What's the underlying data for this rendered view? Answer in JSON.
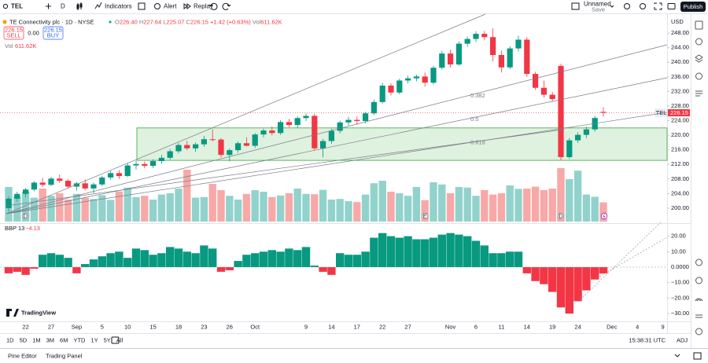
{
  "toolbar": {
    "symbol": "TEL",
    "interval": "D",
    "indicators": "Indicators",
    "alert": "Alert",
    "replay": "Replay",
    "layout_name": "Unnamed",
    "layout_status": "Save",
    "publish": "Publish"
  },
  "legend": {
    "title": "TE Connectivity plc · 1D · NYSE",
    "ohlc": [
      {
        "label": "O",
        "value": "226.40"
      },
      {
        "label": "H",
        "value": "227.64"
      },
      {
        "label": "L",
        "value": "225.07"
      },
      {
        "label": "C",
        "value": "226.15"
      }
    ],
    "change": "+1.42 (+0.63%)",
    "volume_label": "Vol",
    "volume_value": "611.62K"
  },
  "trade": {
    "sell_price": "226.15",
    "sell": "SELL",
    "spread": "0.00",
    "buy_price": "226.15",
    "buy": "BUY"
  },
  "volume_legend": {
    "label": "Vol",
    "value": "611.62K"
  },
  "price_pane": {
    "currency": "USD",
    "ylim": [
      196.1,
      253.2
    ],
    "yticks": [
      {
        "value": 248,
        "label": "248.00"
      },
      {
        "value": 244,
        "label": "244.00"
      },
      {
        "value": 240,
        "label": "240.00"
      },
      {
        "value": 236,
        "label": "236.00"
      },
      {
        "value": 232,
        "label": "232.00"
      },
      {
        "value": 228,
        "label": "228.00"
      },
      {
        "value": 224,
        "label": "224.00"
      },
      {
        "value": 220,
        "label": "220.00"
      },
      {
        "value": 216,
        "label": "216.00"
      },
      {
        "value": 212,
        "label": "212.00"
      },
      {
        "value": 208,
        "label": "208.00"
      },
      {
        "value": 204,
        "label": "204.00"
      },
      {
        "value": 200,
        "label": "200.00"
      }
    ],
    "candles": [
      [
        200.0,
        203.2,
        199.1,
        202.6
      ],
      [
        202.6,
        204.5,
        201.8,
        203.9
      ],
      [
        203.9,
        205.6,
        203.0,
        205.1
      ],
      [
        205.1,
        207.4,
        204.6,
        207.0
      ],
      [
        207.0,
        208.3,
        205.8,
        206.4
      ],
      [
        206.4,
        208.6,
        206.0,
        208.1
      ],
      [
        208.1,
        209.2,
        206.9,
        207.5
      ],
      [
        207.5,
        208.0,
        205.3,
        205.9
      ],
      [
        205.9,
        207.2,
        204.8,
        206.8
      ],
      [
        206.8,
        207.9,
        204.9,
        205.4
      ],
      [
        205.4,
        207.0,
        204.1,
        206.5
      ],
      [
        206.5,
        208.9,
        206.0,
        208.4
      ],
      [
        208.4,
        210.2,
        207.8,
        209.6
      ],
      [
        209.6,
        210.4,
        208.0,
        208.8
      ],
      [
        208.8,
        212.3,
        208.5,
        211.7
      ],
      [
        211.7,
        213.0,
        210.6,
        212.1
      ],
      [
        212.1,
        212.8,
        210.9,
        211.6
      ],
      [
        211.6,
        213.4,
        211.0,
        212.9
      ],
      [
        212.9,
        214.6,
        212.1,
        213.8
      ],
      [
        213.8,
        216.2,
        213.3,
        215.6
      ],
      [
        215.6,
        217.9,
        215.0,
        217.3
      ],
      [
        217.3,
        218.4,
        215.9,
        216.4
      ],
      [
        216.4,
        218.0,
        215.5,
        217.5
      ],
      [
        217.5,
        219.8,
        216.8,
        218.9
      ],
      [
        218.9,
        221.6,
        218.3,
        218.8
      ],
      [
        218.8,
        219.2,
        213.9,
        214.6
      ],
      [
        214.6,
        216.4,
        212.8,
        215.9
      ],
      [
        215.9,
        218.3,
        215.2,
        217.8
      ],
      [
        217.8,
        219.4,
        216.9,
        217.1
      ],
      [
        217.1,
        220.6,
        216.5,
        220.2
      ],
      [
        220.2,
        221.8,
        219.4,
        221.3
      ],
      [
        221.3,
        222.4,
        220.0,
        220.6
      ],
      [
        220.6,
        224.1,
        220.1,
        223.6
      ],
      [
        223.6,
        224.5,
        222.2,
        222.8
      ],
      [
        222.8,
        225.2,
        222.0,
        224.7
      ],
      [
        224.7,
        226.0,
        223.9,
        225.3
      ],
      [
        225.3,
        225.9,
        215.8,
        216.4
      ],
      [
        216.4,
        219.0,
        213.9,
        218.4
      ],
      [
        218.4,
        221.8,
        217.6,
        221.2
      ],
      [
        221.2,
        224.0,
        220.5,
        223.5
      ],
      [
        223.5,
        225.0,
        222.6,
        224.2
      ],
      [
        224.2,
        225.1,
        222.8,
        223.9
      ],
      [
        223.9,
        226.4,
        223.3,
        226.0
      ],
      [
        226.0,
        229.8,
        225.5,
        229.1
      ],
      [
        229.1,
        234.3,
        228.7,
        233.6
      ],
      [
        233.6,
        234.2,
        230.9,
        231.7
      ],
      [
        231.7,
        235.5,
        231.2,
        235.0
      ],
      [
        235.0,
        236.3,
        234.2,
        235.6
      ],
      [
        235.6,
        236.6,
        234.8,
        236.1
      ],
      [
        236.1,
        237.2,
        233.3,
        234.4
      ],
      [
        234.4,
        239.0,
        233.9,
        238.5
      ],
      [
        238.5,
        243.1,
        238.0,
        242.4
      ],
      [
        242.4,
        243.5,
        238.6,
        239.4
      ],
      [
        239.4,
        245.7,
        239.0,
        245.1
      ],
      [
        245.1,
        247.0,
        244.2,
        246.4
      ],
      [
        246.4,
        248.5,
        245.6,
        247.8
      ],
      [
        247.8,
        248.6,
        246.0,
        246.9
      ],
      [
        246.9,
        249.3,
        240.3,
        242.0
      ],
      [
        242.0,
        243.2,
        237.2,
        238.6
      ],
      [
        238.6,
        244.4,
        238.1,
        243.8
      ],
      [
        243.8,
        247.3,
        243.0,
        246.2
      ],
      [
        246.2,
        246.9,
        236.0,
        236.8
      ],
      [
        236.8,
        237.4,
        232.4,
        233.0
      ],
      [
        233.0,
        235.0,
        230.3,
        231.1
      ],
      [
        231.1,
        231.9,
        229.2,
        229.9
      ],
      [
        239.0,
        239.6,
        213.2,
        214.0
      ],
      [
        214.0,
        219.2,
        213.5,
        218.6
      ],
      [
        218.6,
        220.8,
        217.9,
        220.1
      ],
      [
        220.1,
        222.3,
        219.2,
        221.6
      ],
      [
        221.6,
        225.3,
        221.0,
        224.73
      ],
      [
        226.4,
        227.64,
        225.07,
        226.15
      ]
    ],
    "volumes": [
      1100000,
      800000,
      950000,
      760000,
      1050000,
      820000,
      900000,
      700000,
      880000,
      760000,
      720000,
      840000,
      690000,
      960000,
      1080000,
      780000,
      820000,
      700000,
      860000,
      900000,
      1050000,
      1650000,
      760000,
      780000,
      1200000,
      1000000,
      820000,
      700000,
      880000,
      1000000,
      950000,
      780000,
      830000,
      900000,
      1050000,
      880000,
      870000,
      1010000,
      700000,
      720000,
      650000,
      620000,
      860000,
      1220000,
      1300000,
      950000,
      900000,
      820000,
      1100000,
      680000,
      1250000,
      1180000,
      900000,
      1100000,
      1080000,
      820000,
      1000000,
      860000,
      900000,
      1150000,
      1040000,
      1050000,
      1110000,
      1000000,
      1050000,
      1700000,
      1350000,
      1620000,
      860000,
      790000,
      611620
    ],
    "last_price": {
      "symbol": "TEL",
      "value": 226.15
    },
    "zone": {
      "top": 222.0,
      "bottom": 213.1
    },
    "fib_levels": [
      {
        "label": "0.382",
        "value": 230.8
      },
      {
        "label": "0.5",
        "value": 224.3
      },
      {
        "label": "0.618",
        "value": 218.0
      }
    ],
    "events": [
      {
        "label": "D",
        "index": 2
      },
      {
        "label": "E",
        "index": 49
      },
      {
        "label": "D",
        "index": 65
      }
    ]
  },
  "bbp_pane": {
    "title": "BBP 13",
    "value": "−4.13",
    "ylim": [
      -34.5,
      27.9
    ],
    "yticks": [
      {
        "value": 20,
        "label": "20.00"
      },
      {
        "value": 10,
        "label": "10.00"
      },
      {
        "value": 0,
        "label": "0.0000"
      },
      {
        "value": -10,
        "label": "−10.00"
      },
      {
        "value": -20,
        "label": "−20.00"
      },
      {
        "value": -30,
        "label": "−30.00"
      }
    ],
    "values": [
      -4,
      -3,
      -5,
      -1,
      8,
      9,
      8,
      6,
      -4,
      2,
      5,
      7,
      9,
      10,
      6,
      12,
      11,
      8,
      9,
      13,
      12,
      10,
      9,
      14,
      12,
      -3,
      -2,
      4,
      8,
      9,
      10,
      11,
      10,
      12,
      11,
      13,
      1,
      -3,
      -5,
      9,
      8,
      8,
      10,
      19,
      22,
      20,
      19,
      20,
      18,
      18,
      19,
      21,
      22,
      21,
      20,
      17,
      14,
      9,
      9,
      10,
      10,
      -4,
      -9,
      -11,
      -16,
      -26,
      -30,
      -22,
      -15,
      -8,
      -4.13
    ]
  },
  "time_axis": {
    "labels": [
      {
        "label": "22",
        "index": 2
      },
      {
        "label": "27",
        "index": 5
      },
      {
        "label": "Sep",
        "index": 8
      },
      {
        "label": "5",
        "index": 11
      },
      {
        "label": "10",
        "index": 14
      },
      {
        "label": "15",
        "index": 17
      },
      {
        "label": "18",
        "index": 20
      },
      {
        "label": "23",
        "index": 23
      },
      {
        "label": "26",
        "index": 26
      },
      {
        "label": "Oct",
        "index": 29
      },
      {
        "label": "9",
        "index": 35
      },
      {
        "label": "14",
        "index": 38
      },
      {
        "label": "17",
        "index": 41
      },
      {
        "label": "22",
        "index": 44
      },
      {
        "label": "27",
        "index": 47
      },
      {
        "label": "Nov",
        "index": 52
      },
      {
        "label": "6",
        "index": 55
      },
      {
        "label": "11",
        "index": 58
      },
      {
        "label": "14",
        "index": 61
      },
      {
        "label": "19",
        "index": 64
      },
      {
        "label": "24",
        "index": 67
      },
      {
        "label": "Dec",
        "index": 71
      },
      {
        "label": "4",
        "index": 74
      },
      {
        "label": "9",
        "index": 77
      }
    ]
  },
  "branding": "TradingView",
  "ranges": [
    "1D",
    "5D",
    "1M",
    "3M",
    "6M",
    "YTD",
    "1Y",
    "5Y",
    "All"
  ],
  "clock": "15:38:31 UTC",
  "adj": "ADJ",
  "bottom_tabs": [
    "Pine Editor",
    "Trading Panel"
  ]
}
